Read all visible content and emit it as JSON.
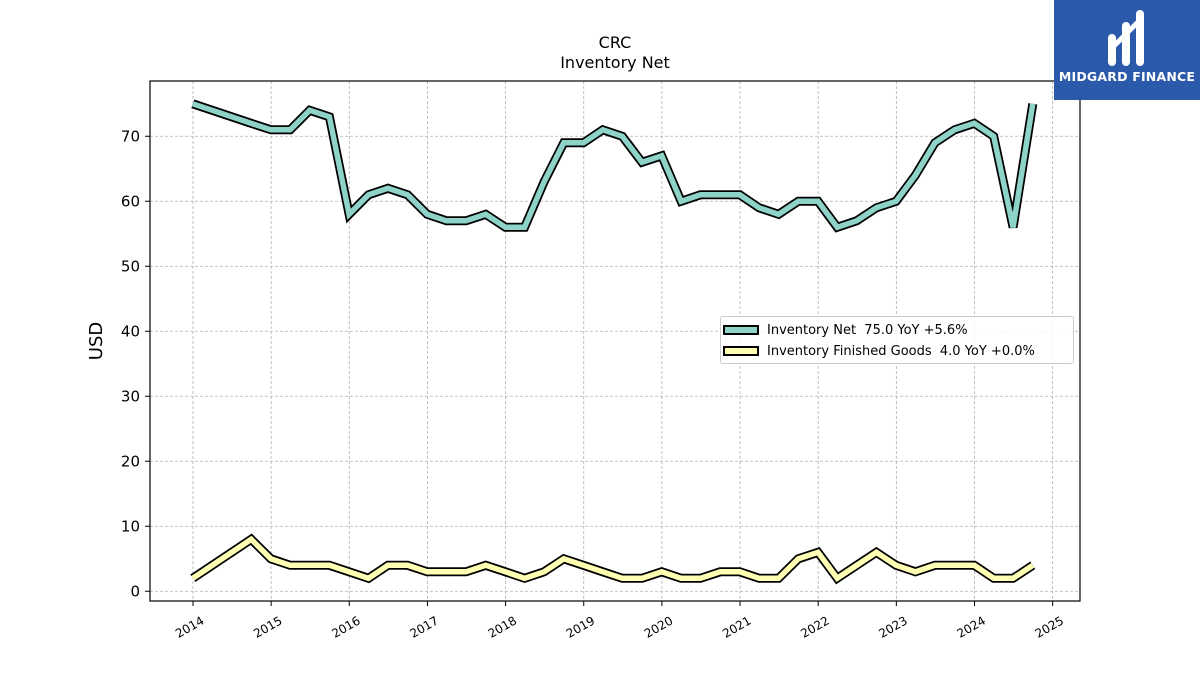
{
  "chart_data": {
    "type": "line",
    "title": "CRC",
    "subtitle": "Inventory Net",
    "ylabel": "USD",
    "xlabel": "",
    "ylim": [
      -1.5,
      78.5
    ],
    "xlim": [
      2013.45,
      2025.35
    ],
    "yticks": [
      0,
      10,
      20,
      30,
      40,
      50,
      60,
      70
    ],
    "xticks": [
      "2014",
      "2015",
      "2016",
      "2017",
      "2018",
      "2019",
      "2020",
      "2021",
      "2022",
      "2023",
      "2024",
      "2025"
    ],
    "grid": true,
    "legend_position": "center-right",
    "series": [
      {
        "name": "Inventory Net",
        "legend_label": "Inventory Net  75.0 YoY +5.6%",
        "color": "#8dd3c7",
        "points": [
          [
            "2013-12-31",
            75.0
          ],
          [
            "2014-09-30",
            72.0
          ],
          [
            "2014-12-31",
            71.0
          ],
          [
            "2015-03-31",
            71.0
          ],
          [
            "2015-06-30",
            74.0
          ],
          [
            "2015-09-30",
            73.0
          ],
          [
            "2015-12-31",
            58.0
          ],
          [
            "2016-03-31",
            61.0
          ],
          [
            "2016-06-30",
            62.0
          ],
          [
            "2016-09-30",
            61.0
          ],
          [
            "2016-12-31",
            58.0
          ],
          [
            "2017-03-31",
            57.0
          ],
          [
            "2017-06-30",
            57.0
          ],
          [
            "2017-09-30",
            58.0
          ],
          [
            "2017-12-31",
            56.0
          ],
          [
            "2018-03-31",
            56.0
          ],
          [
            "2018-06-30",
            63.0
          ],
          [
            "2018-09-30",
            69.0
          ],
          [
            "2018-12-31",
            69.0
          ],
          [
            "2019-03-31",
            71.0
          ],
          [
            "2019-06-30",
            70.0
          ],
          [
            "2019-09-30",
            66.0
          ],
          [
            "2019-12-31",
            67.0
          ],
          [
            "2020-03-31",
            60.0
          ],
          [
            "2020-06-30",
            61.0
          ],
          [
            "2020-09-30",
            61.0
          ],
          [
            "2020-12-31",
            61.0
          ],
          [
            "2021-03-31",
            59.0
          ],
          [
            "2021-06-30",
            58.0
          ],
          [
            "2021-09-30",
            60.0
          ],
          [
            "2021-12-31",
            60.0
          ],
          [
            "2022-03-31",
            56.0
          ],
          [
            "2022-06-30",
            57.0
          ],
          [
            "2022-09-30",
            59.0
          ],
          [
            "2022-12-31",
            60.0
          ],
          [
            "2023-03-31",
            64.0
          ],
          [
            "2023-06-30",
            69.0
          ],
          [
            "2023-09-30",
            71.0
          ],
          [
            "2023-12-31",
            72.0
          ],
          [
            "2024-03-31",
            70.0
          ],
          [
            "2024-06-30",
            56.0
          ],
          [
            "2024-09-30",
            75.0
          ]
        ]
      },
      {
        "name": "Inventory Finished Goods",
        "legend_label": "Inventory Finished Goods  4.0 YoY +0.0%",
        "color": "#ffffb3",
        "points": [
          [
            "2013-12-31",
            2.0
          ],
          [
            "2014-09-30",
            8.0
          ],
          [
            "2014-12-31",
            5.0
          ],
          [
            "2015-03-31",
            4.0
          ],
          [
            "2015-06-30",
            4.0
          ],
          [
            "2015-09-30",
            4.0
          ],
          [
            "2015-12-31",
            3.0
          ],
          [
            "2016-03-31",
            2.0
          ],
          [
            "2016-06-30",
            4.0
          ],
          [
            "2016-09-30",
            4.0
          ],
          [
            "2016-12-31",
            3.0
          ],
          [
            "2017-03-31",
            3.0
          ],
          [
            "2017-06-30",
            3.0
          ],
          [
            "2017-09-30",
            4.0
          ],
          [
            "2017-12-31",
            3.0
          ],
          [
            "2018-03-31",
            2.0
          ],
          [
            "2018-06-30",
            3.0
          ],
          [
            "2018-09-30",
            5.0
          ],
          [
            "2018-12-31",
            4.0
          ],
          [
            "2019-03-31",
            3.0
          ],
          [
            "2019-06-30",
            2.0
          ],
          [
            "2019-09-30",
            2.0
          ],
          [
            "2019-12-31",
            3.0
          ],
          [
            "2020-03-31",
            2.0
          ],
          [
            "2020-06-30",
            2.0
          ],
          [
            "2020-09-30",
            3.0
          ],
          [
            "2020-12-31",
            3.0
          ],
          [
            "2021-03-31",
            2.0
          ],
          [
            "2021-06-30",
            2.0
          ],
          [
            "2021-09-30",
            5.0
          ],
          [
            "2021-12-31",
            6.0
          ],
          [
            "2022-03-31",
            2.0
          ],
          [
            "2022-06-30",
            4.0
          ],
          [
            "2022-09-30",
            6.0
          ],
          [
            "2022-12-31",
            4.0
          ],
          [
            "2023-03-31",
            3.0
          ],
          [
            "2023-06-30",
            4.0
          ],
          [
            "2023-09-30",
            4.0
          ],
          [
            "2023-12-31",
            4.0
          ],
          [
            "2024-03-31",
            2.0
          ],
          [
            "2024-06-30",
            2.0
          ],
          [
            "2024-09-30",
            4.0
          ]
        ]
      }
    ]
  },
  "logo": {
    "text": "MIDGARD FINANCE",
    "background": "#2b5aab"
  }
}
